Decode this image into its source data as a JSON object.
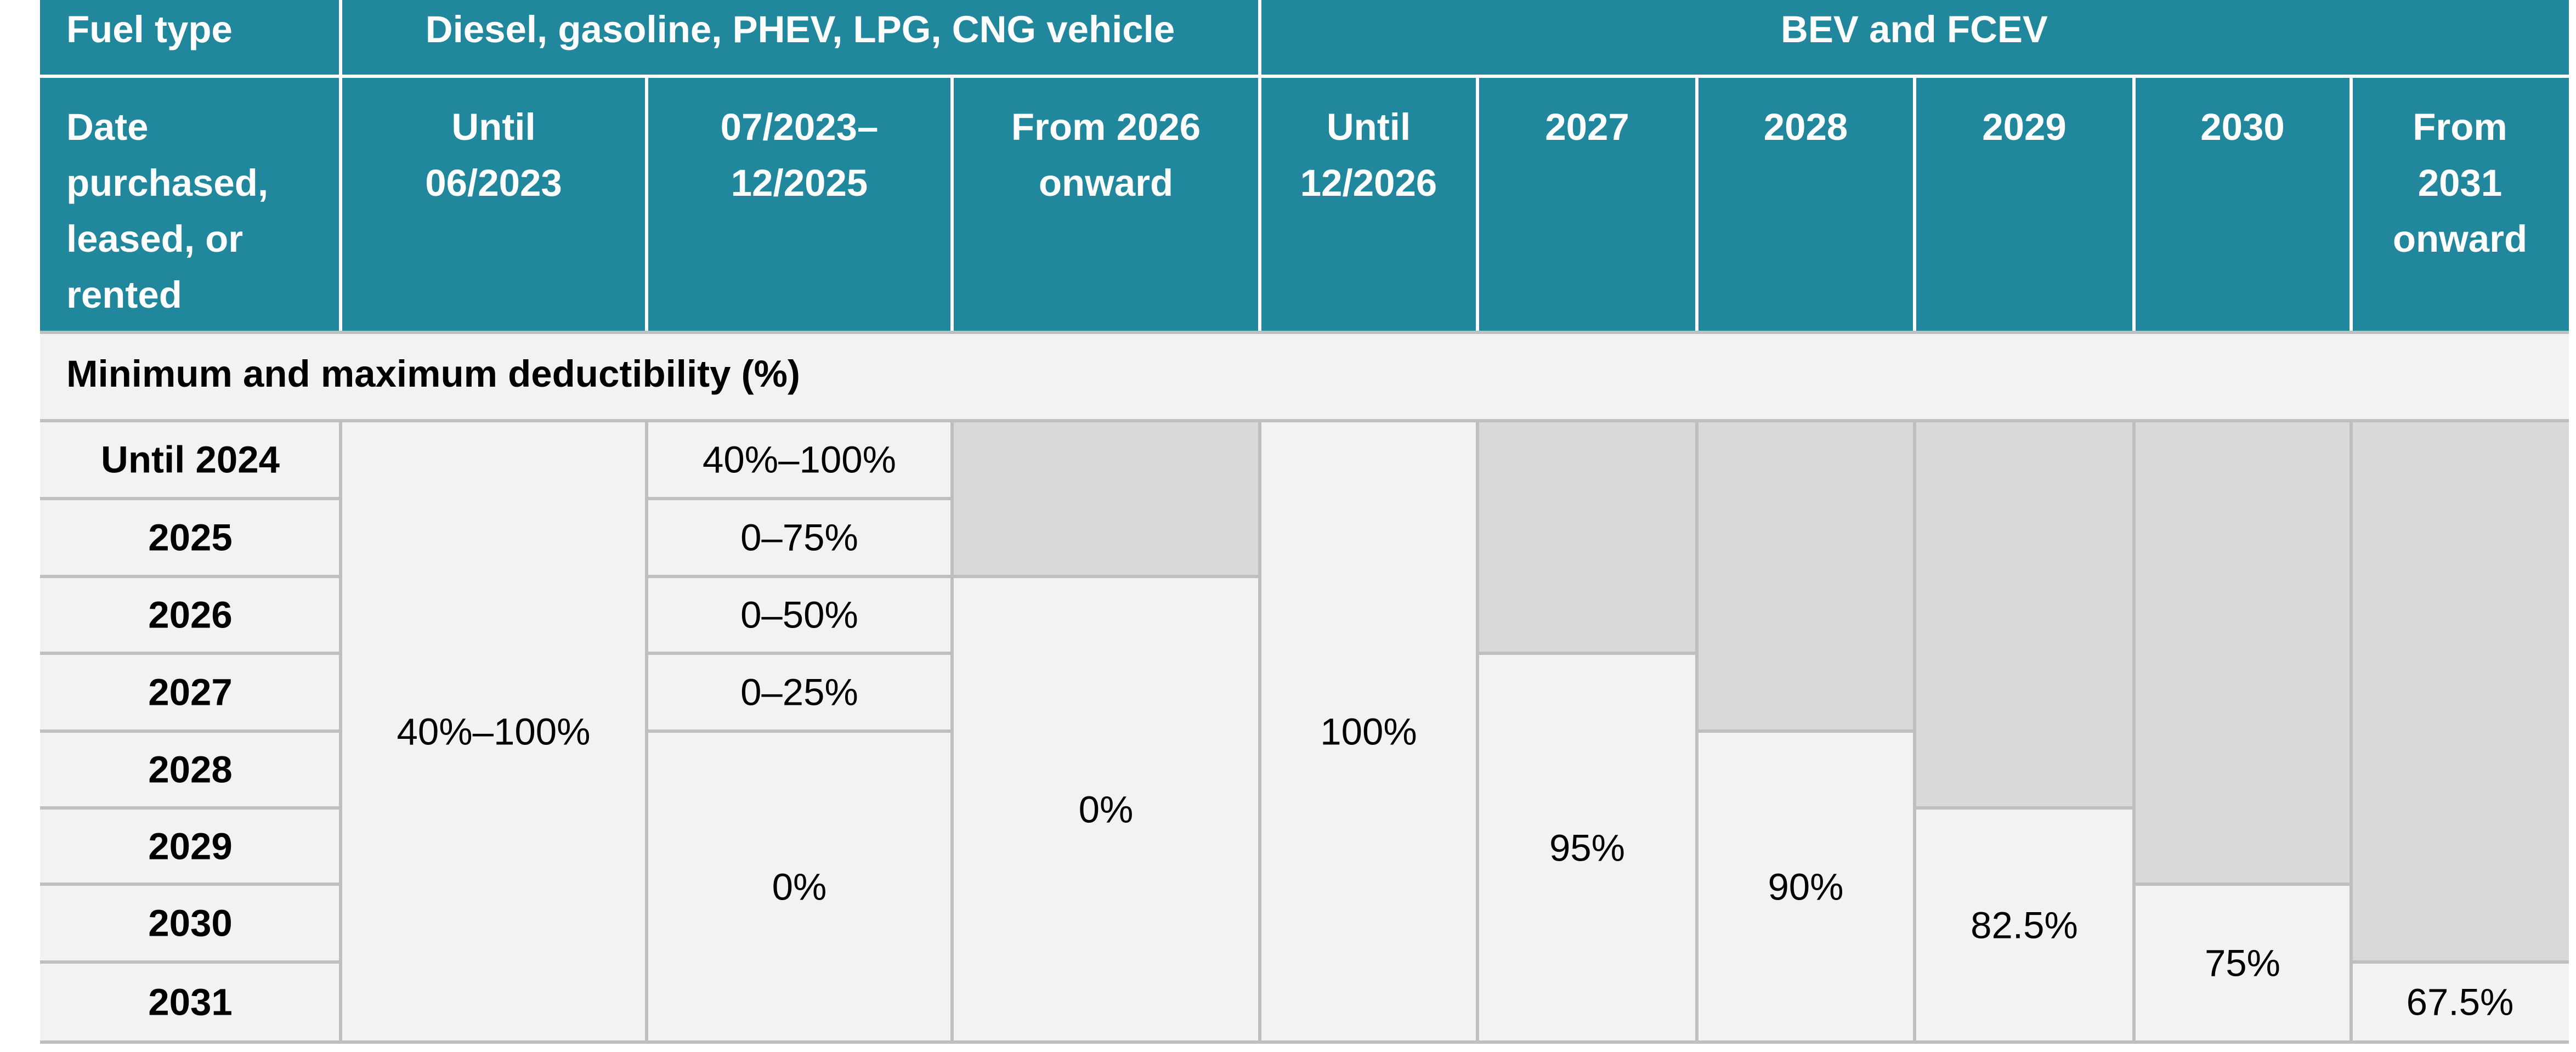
{
  "colors": {
    "header_bg": "#21879d",
    "header_text": "#ffffff",
    "cell_bg": "#f2f2f2",
    "shaded_bg": "#d9d9d9",
    "border_light": "#ffffff",
    "border_grid": "#bfbfbf",
    "body_text": "#000000"
  },
  "header": {
    "fuel_type_label": "Fuel type",
    "group_ice": "Diesel, gasoline, PHEV, LPG, CNG vehicle",
    "group_ev": "BEV and FCEV",
    "date_label_lines": [
      "Date",
      "purchased,",
      "leased, or",
      "rented"
    ],
    "columns": [
      {
        "lines": [
          "Until",
          "06/2023"
        ]
      },
      {
        "lines": [
          "07/2023–",
          "12/2025"
        ]
      },
      {
        "lines": [
          "From 2026",
          "onward"
        ]
      },
      {
        "lines": [
          "Until",
          "12/2026"
        ]
      },
      {
        "lines": [
          "2027"
        ]
      },
      {
        "lines": [
          "2028"
        ]
      },
      {
        "lines": [
          "2029"
        ]
      },
      {
        "lines": [
          "2030"
        ]
      },
      {
        "lines": [
          "From",
          "2031",
          "onward"
        ]
      }
    ]
  },
  "section_title": "Minimum and maximum deductibility (%)",
  "rows": [
    "Until 2024",
    "2025",
    "2026",
    "2027",
    "2028",
    "2029",
    "2030",
    "2031"
  ],
  "cells": [
    {
      "col": 1,
      "rows": [
        0,
        7
      ],
      "text": "40%–100%"
    },
    {
      "col": 2,
      "rows": [
        0,
        0
      ],
      "text": "40%–100%"
    },
    {
      "col": 2,
      "rows": [
        1,
        1
      ],
      "text": "0–75%"
    },
    {
      "col": 2,
      "rows": [
        2,
        2
      ],
      "text": "0–50%"
    },
    {
      "col": 2,
      "rows": [
        3,
        3
      ],
      "text": "0–25%"
    },
    {
      "col": 2,
      "rows": [
        4,
        7
      ],
      "text": "0%"
    },
    {
      "col": 3,
      "rows": [
        2,
        7
      ],
      "text": "0%"
    },
    {
      "col": 4,
      "rows": [
        0,
        7
      ],
      "text": "100%"
    },
    {
      "col": 5,
      "rows": [
        3,
        7
      ],
      "text": "95%"
    },
    {
      "col": 6,
      "rows": [
        4,
        7
      ],
      "text": "90%"
    },
    {
      "col": 7,
      "rows": [
        5,
        7
      ],
      "text": "82.5%"
    },
    {
      "col": 8,
      "rows": [
        6,
        7
      ],
      "text": "75%"
    },
    {
      "col": 9,
      "rows": [
        7,
        7
      ],
      "text": "67.5%"
    }
  ],
  "shaded": [
    {
      "col": 3,
      "rows": [
        0,
        1
      ]
    },
    {
      "col": 5,
      "rows": [
        0,
        2
      ]
    },
    {
      "col": 6,
      "rows": [
        0,
        3
      ]
    },
    {
      "col": 7,
      "rows": [
        0,
        4
      ]
    },
    {
      "col": 8,
      "rows": [
        0,
        5
      ]
    },
    {
      "col": 9,
      "rows": [
        0,
        6
      ]
    }
  ]
}
